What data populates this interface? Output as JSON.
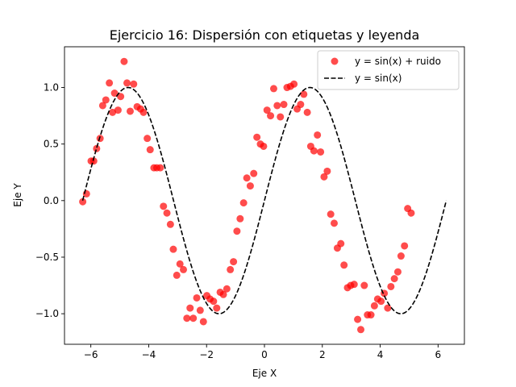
{
  "chart_data": {
    "type": "scatter",
    "title": "Ejercicio 16: Dispersión con etiquetas y leyenda",
    "xlabel": "Eje X",
    "ylabel": "Eje Y",
    "xlim": [
      -6.91,
      6.91
    ],
    "ylim": [
      -1.27,
      1.36
    ],
    "xticks": [
      -6,
      -4,
      -2,
      0,
      2,
      4,
      6
    ],
    "yticks": [
      -1.0,
      -0.5,
      0.0,
      0.5,
      1.0
    ],
    "xtick_labels": [
      "−6",
      "−4",
      "−2",
      "0",
      "2",
      "4",
      "6"
    ],
    "ytick_labels": [
      "−1.0",
      "−0.5",
      "0.0",
      "0.5",
      "1.0"
    ],
    "grid": false,
    "legend_position": "upper right",
    "colors": {
      "scatter": "#ff0000",
      "line": "#000000"
    },
    "series": [
      {
        "name": "y = sin(x) + ruido",
        "kind": "scatter",
        "points": [
          [
            -6.28,
            -0.01
          ],
          [
            -6.15,
            0.06
          ],
          [
            -5.99,
            0.35
          ],
          [
            -5.9,
            0.35
          ],
          [
            -5.8,
            0.46
          ],
          [
            -5.68,
            0.55
          ],
          [
            -5.59,
            0.84
          ],
          [
            -5.48,
            0.89
          ],
          [
            -5.36,
            1.04
          ],
          [
            -5.25,
            0.78
          ],
          [
            -5.18,
            0.95
          ],
          [
            -5.06,
            0.8
          ],
          [
            -4.97,
            0.92
          ],
          [
            -4.85,
            1.23
          ],
          [
            -4.75,
            1.04
          ],
          [
            -4.64,
            0.79
          ],
          [
            -4.52,
            1.03
          ],
          [
            -4.4,
            0.83
          ],
          [
            -4.28,
            0.81
          ],
          [
            -4.18,
            0.78
          ],
          [
            -4.05,
            0.55
          ],
          [
            -3.95,
            0.45
          ],
          [
            -3.82,
            0.29
          ],
          [
            -3.72,
            0.29
          ],
          [
            -3.6,
            0.29
          ],
          [
            -3.49,
            -0.05
          ],
          [
            -3.37,
            -0.11
          ],
          [
            -3.25,
            -0.21
          ],
          [
            -3.15,
            -0.43
          ],
          [
            -3.03,
            -0.66
          ],
          [
            -2.92,
            -0.56
          ],
          [
            -2.8,
            -0.61
          ],
          [
            -2.68,
            -1.04
          ],
          [
            -2.57,
            -0.95
          ],
          [
            -2.46,
            -1.04
          ],
          [
            -2.34,
            -0.86
          ],
          [
            -2.22,
            -0.97
          ],
          [
            -2.11,
            -1.07
          ],
          [
            -1.99,
            -0.84
          ],
          [
            -1.88,
            -0.87
          ],
          [
            -1.76,
            -0.89
          ],
          [
            -1.65,
            -0.95
          ],
          [
            -1.53,
            -0.81
          ],
          [
            -1.42,
            -0.83
          ],
          [
            -1.3,
            -0.78
          ],
          [
            -1.18,
            -0.61
          ],
          [
            -1.07,
            -0.54
          ],
          [
            -0.95,
            -0.27
          ],
          [
            -0.84,
            -0.16
          ],
          [
            -0.72,
            -0.02
          ],
          [
            -0.61,
            0.2
          ],
          [
            -0.49,
            0.13
          ],
          [
            -0.37,
            0.24
          ],
          [
            -0.26,
            0.56
          ],
          [
            -0.14,
            0.5
          ],
          [
            -0.03,
            0.48
          ],
          [
            0.09,
            0.8
          ],
          [
            0.21,
            0.75
          ],
          [
            0.32,
            0.99
          ],
          [
            0.44,
            0.84
          ],
          [
            0.55,
            0.74
          ],
          [
            0.67,
            0.85
          ],
          [
            0.78,
            1.0
          ],
          [
            0.9,
            1.01
          ],
          [
            1.02,
            1.03
          ],
          [
            1.13,
            0.81
          ],
          [
            1.25,
            0.85
          ],
          [
            1.36,
            0.94
          ],
          [
            1.48,
            0.78
          ],
          [
            1.6,
            0.48
          ],
          [
            1.71,
            0.44
          ],
          [
            1.83,
            0.58
          ],
          [
            1.94,
            0.43
          ],
          [
            2.06,
            0.21
          ],
          [
            2.17,
            0.26
          ],
          [
            2.29,
            -0.12
          ],
          [
            2.41,
            -0.2
          ],
          [
            2.52,
            -0.42
          ],
          [
            2.64,
            -0.38
          ],
          [
            2.75,
            -0.57
          ],
          [
            2.87,
            -0.77
          ],
          [
            2.98,
            -0.75
          ],
          [
            3.1,
            -0.74
          ],
          [
            3.22,
            -1.05
          ],
          [
            3.33,
            -1.14
          ],
          [
            3.45,
            -0.75
          ],
          [
            3.56,
            -1.01
          ],
          [
            3.68,
            -1.01
          ],
          [
            3.8,
            -0.93
          ],
          [
            3.91,
            -0.87
          ],
          [
            4.03,
            -0.89
          ],
          [
            4.14,
            -0.82
          ],
          [
            4.26,
            -0.95
          ],
          [
            4.37,
            -0.76
          ],
          [
            4.49,
            -0.69
          ],
          [
            4.61,
            -0.63
          ],
          [
            4.72,
            -0.49
          ],
          [
            4.84,
            -0.4
          ],
          [
            4.95,
            -0.07
          ],
          [
            5.07,
            -0.11
          ]
        ]
      },
      {
        "name": "y = sin(x)",
        "kind": "line",
        "style": "dashed",
        "function": "sin",
        "x_range": [
          -6.283,
          6.283
        ]
      }
    ]
  }
}
